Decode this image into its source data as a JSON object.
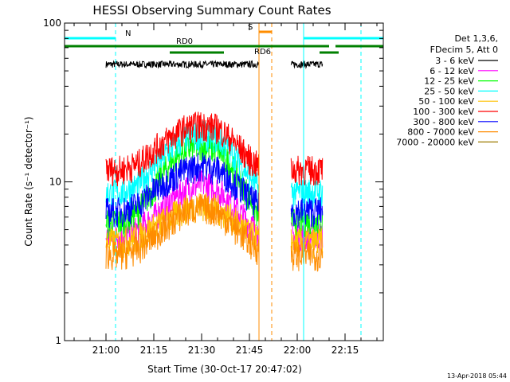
{
  "chart_data": {
    "type": "line",
    "title": "HESSI Observing Summary Count Rates",
    "xlabel": "Start Time (30-Oct-17 20:47:02)",
    "ylabel": "Count Rate (s⁻¹ detector⁻¹)",
    "y_scale": "log",
    "ylim": [
      1,
      100
    ],
    "xlim": [
      "20:47",
      "22:27"
    ],
    "x_ticks": [
      "21:00",
      "21:15",
      "21:30",
      "21:45",
      "22:00",
      "22:15"
    ],
    "y_ticks": [
      "1",
      "10",
      "100"
    ],
    "legend_header": [
      "Det 1,3,6,",
      "FDecim 5, Att 0"
    ],
    "legend_position": "top-right",
    "timestamp": "13-Apr-2018 05:44",
    "x": [
      "21:00",
      "21:05",
      "21:10",
      "21:15",
      "21:20",
      "21:25",
      "21:30",
      "21:35",
      "21:40",
      "21:45",
      "21:48",
      "21:58",
      "22:00",
      "22:05",
      "22:08"
    ],
    "series": [
      {
        "name": "3 - 6 keV",
        "color": "#000000",
        "values": [
          55,
          55,
          55,
          55,
          55,
          55,
          55,
          55,
          55,
          55,
          55,
          55,
          55,
          55,
          55
        ]
      },
      {
        "name": "6 - 12 keV",
        "color": "#ff00ff",
        "values": [
          4.5,
          4.6,
          5.0,
          6.0,
          7.5,
          9.0,
          9.8,
          9.0,
          7.0,
          5.5,
          4.8,
          4.6,
          4.6,
          4.6,
          4.6
        ]
      },
      {
        "name": "12 - 25 keV",
        "color": "#00ff00",
        "values": [
          5.5,
          5.6,
          6.5,
          9.0,
          13,
          16,
          17,
          16,
          12,
          8,
          6,
          5.7,
          5.7,
          5.7,
          5.7
        ]
      },
      {
        "name": "25 - 50 keV",
        "color": "#00ffff",
        "values": [
          8.5,
          8.6,
          9.5,
          12.5,
          16,
          19,
          20,
          19,
          15,
          11,
          9,
          8.7,
          8.7,
          8.7,
          8.7
        ]
      },
      {
        "name": "50 - 100 keV",
        "color": "#ffc000",
        "values": [
          4.2,
          4.2,
          4.5,
          5.2,
          6.0,
          6.8,
          7.2,
          6.8,
          5.8,
          4.8,
          4.3,
          4.2,
          4.2,
          4.2,
          4.2
        ]
      },
      {
        "name": "100 - 300 keV",
        "color": "#ff0000",
        "values": [
          12,
          12,
          13,
          16,
          19,
          22,
          23,
          22,
          18,
          14,
          12.5,
          12,
          12,
          12,
          12
        ]
      },
      {
        "name": "300 - 800 keV",
        "color": "#0000ff",
        "values": [
          6.5,
          6.6,
          7.2,
          8.8,
          10.5,
          12,
          12.8,
          12,
          10,
          8,
          7,
          6.6,
          6.6,
          6.6,
          6.6
        ]
      },
      {
        "name": "800 - 7000 keV",
        "color": "#ff8c00",
        "values": [
          3.5,
          3.5,
          3.8,
          4.5,
          5.5,
          6.5,
          7.0,
          6.5,
          5.2,
          4.2,
          3.7,
          3.5,
          3.5,
          3.5,
          3.5
        ]
      },
      {
        "name": "7000 - 20000 keV",
        "color": "#9c7a00",
        "values": [
          null,
          null,
          null,
          null,
          null,
          null,
          null,
          null,
          null,
          null,
          null,
          null,
          null,
          null,
          null
        ]
      }
    ],
    "flags": [
      {
        "label": "N",
        "color": "#00ffff",
        "segments": [
          [
            "20:47",
            "21:03"
          ],
          [
            "22:02",
            "22:27"
          ]
        ],
        "y": 1
      },
      {
        "label": "RD0",
        "color": "#008000",
        "segments": [
          [
            "20:47",
            "21:20"
          ],
          [
            "21:20",
            "21:50"
          ],
          [
            "21:50",
            "22:10"
          ],
          [
            "22:12",
            "22:27"
          ]
        ],
        "y": 2
      },
      {
        "label": "RD6",
        "color": "#008000",
        "segments": [
          [
            "21:20",
            "21:37"
          ],
          [
            "22:07",
            "22:13"
          ]
        ],
        "y": 3
      },
      {
        "label": "S",
        "color": "#ff8c00",
        "segments": [
          [
            "21:48",
            "21:52"
          ]
        ],
        "y": 0
      }
    ],
    "markers": [
      {
        "time": "20:47",
        "color": "#00ffff",
        "style": "solid"
      },
      {
        "time": "21:03",
        "color": "#00ffff",
        "style": "dashed"
      },
      {
        "time": "21:48",
        "color": "#ff8c00",
        "style": "solid"
      },
      {
        "time": "21:52",
        "color": "#ff8c00",
        "style": "dashed"
      },
      {
        "time": "22:02",
        "color": "#00ffff",
        "style": "solid"
      },
      {
        "time": "22:20",
        "color": "#00ffff",
        "style": "dashed"
      }
    ]
  }
}
